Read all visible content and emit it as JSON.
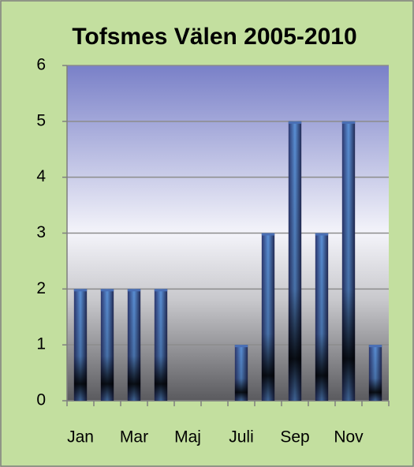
{
  "chart_data": {
    "type": "bar",
    "title": "Tofsmes Välen 2005-2010",
    "categories": [
      "Jan",
      null,
      "Mar",
      null,
      "Maj",
      null,
      "Juli",
      null,
      "Sep",
      null,
      "Nov",
      null
    ],
    "values": [
      2,
      2,
      2,
      2,
      0,
      0,
      1,
      3,
      5,
      3,
      5,
      1
    ],
    "color": "#4a6fb5",
    "ylim": [
      0,
      6
    ],
    "yticks": [
      0,
      1,
      2,
      3,
      4,
      5,
      6
    ],
    "grid": true
  }
}
